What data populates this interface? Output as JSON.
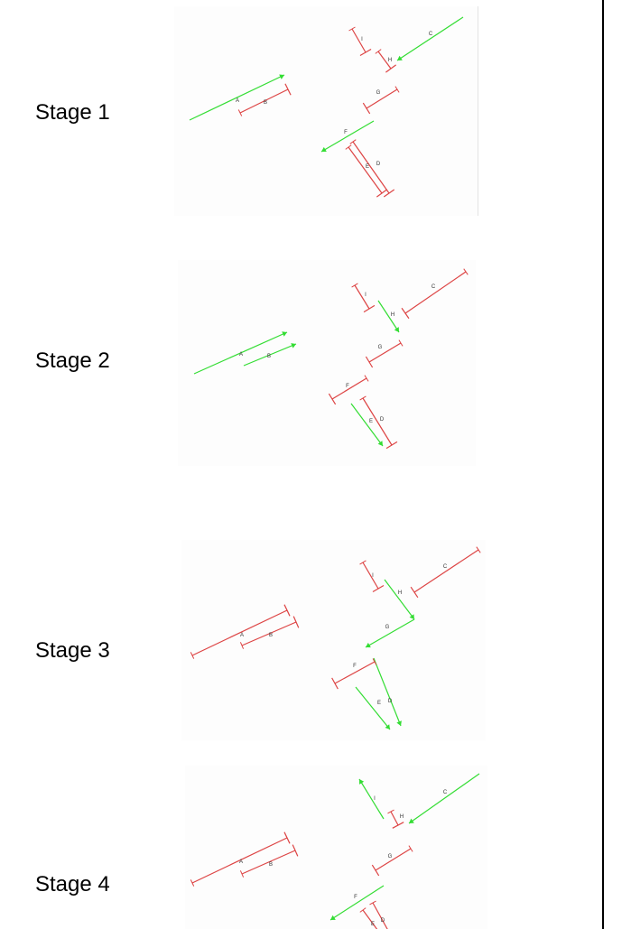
{
  "stages": [
    {
      "label": "Stage 1",
      "signals": {
        "A": "green",
        "B": "red",
        "C": "green",
        "D": "red",
        "E": "red",
        "F": "green",
        "G": "red",
        "H": "red",
        "I": "red"
      }
    },
    {
      "label": "Stage 2",
      "signals": {
        "A": "green",
        "B": "green",
        "C": "red",
        "D": "red",
        "E": "green",
        "F": "red",
        "G": "red",
        "H": "green",
        "I": "red"
      }
    },
    {
      "label": "Stage 3",
      "signals": {
        "A": "red",
        "B": "red",
        "C": "red",
        "D": "green",
        "E": "green",
        "F": "red",
        "G": "green",
        "H": "green",
        "I": "red"
      }
    },
    {
      "label": "Stage 4",
      "signals": {
        "A": "red",
        "B": "red",
        "C": "green",
        "D": "red",
        "E": "red",
        "F": "green",
        "G": "red",
        "H": "red",
        "I": "green"
      }
    }
  ],
  "colors": {
    "green": "#33dd33",
    "red": "#dd4444"
  }
}
